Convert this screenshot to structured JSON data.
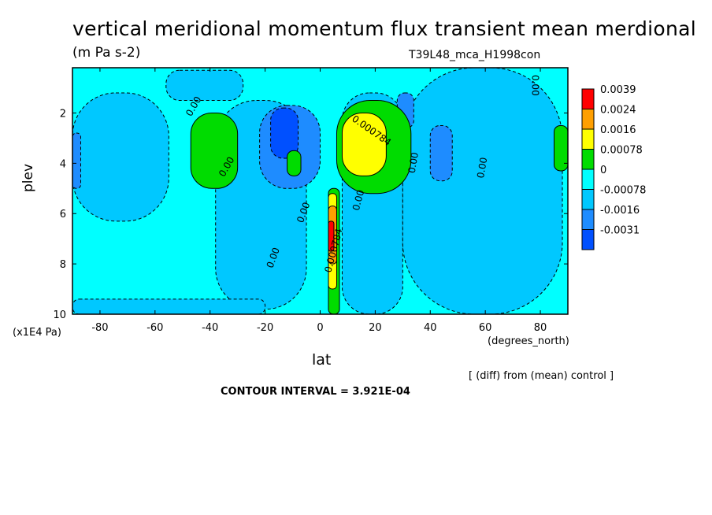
{
  "chart_data": {
    "type": "heatmap",
    "title": "vertical meridional momentum flux transient mean merdional",
    "units": "(m Pa s-2)",
    "run_id": "T39L48_mca_H1998con",
    "xlabel": "lat",
    "x_units": "(degrees_north)",
    "ylabel": "plev",
    "y_units": "(x1E4 Pa)",
    "xlim": [
      -90,
      90
    ],
    "ylim": [
      10,
      0.2
    ],
    "x_ticks": [
      "-80",
      "-60",
      "-40",
      "-20",
      "0",
      "20",
      "40",
      "60",
      "80"
    ],
    "x_tick_values": [
      -80,
      -60,
      -40,
      -20,
      0,
      20,
      40,
      60,
      80
    ],
    "y_ticks": [
      "2",
      "4",
      "6",
      "8",
      "10"
    ],
    "y_tick_values": [
      2,
      4,
      6,
      8,
      10
    ],
    "legend": {
      "labels": [
        "0.0039",
        "0.0024",
        "0.0016",
        "0.00078",
        "0",
        "-0.00078",
        "-0.0016",
        "-0.0031"
      ],
      "colors": [
        "#ff0000",
        "#ff9f00",
        "#ffff00",
        "#00dc00",
        "#00ffff",
        "#00c8ff",
        "#1e8cff",
        "#0050ff"
      ]
    },
    "contour_labels": [
      "0.00",
      "0.000784"
    ],
    "notes": [
      "[ (diff) from (mean) control ]",
      "CONTOUR INTERVAL = 3.921E-04"
    ],
    "regions": [
      {
        "level": "0",
        "lon": [
          -90,
          90
        ],
        "p": [
          0.2,
          10
        ]
      },
      {
        "level": "-0.00078",
        "lon": [
          -90,
          -55
        ],
        "p": [
          1.2,
          6.3
        ]
      },
      {
        "level": "-0.00078",
        "lon": [
          -56,
          -28
        ],
        "p": [
          0.3,
          1.5
        ]
      },
      {
        "level": "-0.00078",
        "lon": [
          -38,
          -5
        ],
        "p": [
          1.5,
          9.8
        ]
      },
      {
        "level": "-0.00078",
        "lon": [
          8,
          30
        ],
        "p": [
          1.2,
          10
        ]
      },
      {
        "level": "-0.00078",
        "lon": [
          30,
          88
        ],
        "p": [
          0.2,
          10
        ]
      },
      {
        "level": "-0.00078",
        "lon": [
          -90,
          -20
        ],
        "p": [
          9.4,
          10
        ]
      },
      {
        "level": "-0.0016",
        "lon": [
          -22,
          0
        ],
        "p": [
          1.7,
          5.0
        ]
      },
      {
        "level": "-0.0016",
        "lon": [
          28,
          34
        ],
        "p": [
          1.2,
          2.6
        ]
      },
      {
        "level": "-0.0016",
        "lon": [
          40,
          48
        ],
        "p": [
          2.5,
          4.7
        ]
      },
      {
        "level": "-0.0016",
        "lon": [
          -90,
          -87
        ],
        "p": [
          2.8,
          5.0
        ]
      },
      {
        "level": "-0.0031",
        "lon": [
          -18,
          -8
        ],
        "p": [
          1.8,
          3.8
        ]
      },
      {
        "level": "0.00078",
        "lon": [
          -47,
          -30
        ],
        "p": [
          2.0,
          5.0
        ]
      },
      {
        "level": "0.00078",
        "lon": [
          6,
          33
        ],
        "p": [
          1.5,
          5.2
        ]
      },
      {
        "level": "0.00078",
        "lon": [
          -12,
          -7
        ],
        "p": [
          3.5,
          4.5
        ]
      },
      {
        "level": "0.00078",
        "lon": [
          3,
          7
        ],
        "p": [
          5.0,
          10
        ]
      },
      {
        "level": "0.00078",
        "lon": [
          85,
          90
        ],
        "p": [
          2.5,
          4.3
        ]
      },
      {
        "level": "0.0016",
        "lon": [
          8,
          24
        ],
        "p": [
          2.0,
          4.5
        ]
      },
      {
        "level": "0.0016",
        "lon": [
          3,
          6
        ],
        "p": [
          5.2,
          9.0
        ]
      },
      {
        "level": "0.0024",
        "lon": [
          3,
          6
        ],
        "p": [
          5.7,
          8.0
        ]
      },
      {
        "level": "0.0039",
        "lon": [
          3,
          5
        ],
        "p": [
          6.3,
          7.5
        ]
      }
    ]
  }
}
